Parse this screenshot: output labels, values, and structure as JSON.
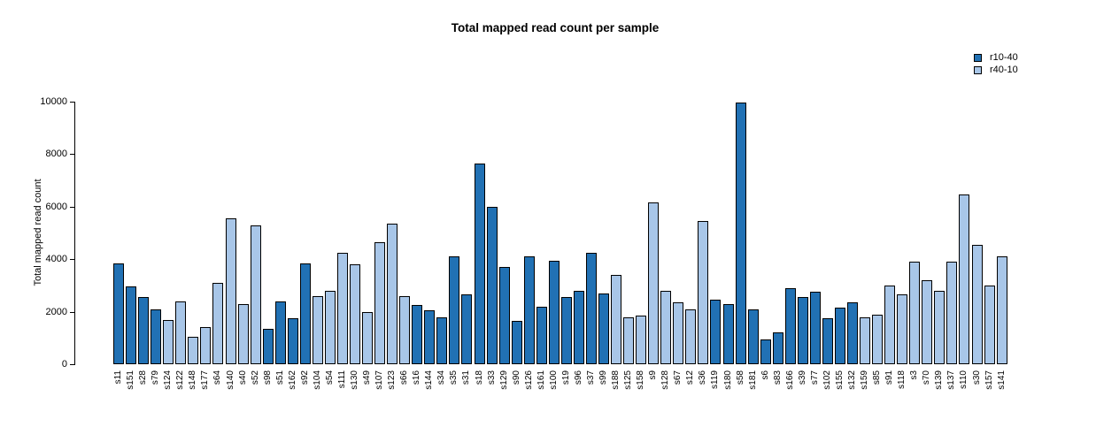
{
  "title": "Total mapped read count per sample",
  "y_axis": {
    "label": "Total mapped read count",
    "ticks": [
      0,
      2000,
      4000,
      6000,
      8000,
      10000
    ]
  },
  "legend": [
    {
      "label": "r10-40",
      "color": "#2171B4"
    },
    {
      "label": "r40-10",
      "color": "#A8C6E8"
    }
  ],
  "chart_data": {
    "type": "bar",
    "title": "Total mapped read count per sample",
    "xlabel": "",
    "ylabel": "Total mapped read count",
    "ylim": [
      0,
      10000
    ],
    "yticks": [
      0,
      2000,
      4000,
      6000,
      8000,
      10000
    ],
    "grid": false,
    "legend_position": "top-right",
    "series_colors": {
      "r10-40": "#2171B4",
      "r40-10": "#A8C6E8"
    },
    "bars": [
      {
        "label": "s11",
        "value": 3850,
        "series": "r10-40"
      },
      {
        "label": "s151",
        "value": 2950,
        "series": "r10-40"
      },
      {
        "label": "s28",
        "value": 2550,
        "series": "r10-40"
      },
      {
        "label": "s79",
        "value": 2100,
        "series": "r10-40"
      },
      {
        "label": "s124",
        "value": 1700,
        "series": "r40-10"
      },
      {
        "label": "s122",
        "value": 2400,
        "series": "r40-10"
      },
      {
        "label": "s148",
        "value": 1050,
        "series": "r40-10"
      },
      {
        "label": "s177",
        "value": 1400,
        "series": "r40-10"
      },
      {
        "label": "s64",
        "value": 3100,
        "series": "r40-10"
      },
      {
        "label": "s140",
        "value": 5550,
        "series": "r40-10"
      },
      {
        "label": "s40",
        "value": 2300,
        "series": "r40-10"
      },
      {
        "label": "s52",
        "value": 5300,
        "series": "r40-10"
      },
      {
        "label": "s98",
        "value": 1350,
        "series": "r10-40"
      },
      {
        "label": "s51",
        "value": 2400,
        "series": "r10-40"
      },
      {
        "label": "s162",
        "value": 1750,
        "series": "r10-40"
      },
      {
        "label": "s92",
        "value": 3850,
        "series": "r10-40"
      },
      {
        "label": "s104",
        "value": 2600,
        "series": "r40-10"
      },
      {
        "label": "s54",
        "value": 2800,
        "series": "r40-10"
      },
      {
        "label": "s111",
        "value": 4250,
        "series": "r40-10"
      },
      {
        "label": "s130",
        "value": 3800,
        "series": "r40-10"
      },
      {
        "label": "s49",
        "value": 2000,
        "series": "r40-10"
      },
      {
        "label": "s107",
        "value": 4650,
        "series": "r40-10"
      },
      {
        "label": "s123",
        "value": 5350,
        "series": "r40-10"
      },
      {
        "label": "s66",
        "value": 2600,
        "series": "r40-10"
      },
      {
        "label": "s16",
        "value": 2250,
        "series": "r10-40"
      },
      {
        "label": "s144",
        "value": 2050,
        "series": "r10-40"
      },
      {
        "label": "s34",
        "value": 1800,
        "series": "r10-40"
      },
      {
        "label": "s35",
        "value": 4100,
        "series": "r10-40"
      },
      {
        "label": "s31",
        "value": 2650,
        "series": "r10-40"
      },
      {
        "label": "s18",
        "value": 7650,
        "series": "r10-40"
      },
      {
        "label": "s33",
        "value": 6000,
        "series": "r10-40"
      },
      {
        "label": "s129",
        "value": 3700,
        "series": "r10-40"
      },
      {
        "label": "s90",
        "value": 1650,
        "series": "r10-40"
      },
      {
        "label": "s126",
        "value": 4100,
        "series": "r10-40"
      },
      {
        "label": "s161",
        "value": 2200,
        "series": "r10-40"
      },
      {
        "label": "s100",
        "value": 3950,
        "series": "r10-40"
      },
      {
        "label": "s19",
        "value": 2550,
        "series": "r10-40"
      },
      {
        "label": "s96",
        "value": 2800,
        "series": "r10-40"
      },
      {
        "label": "s37",
        "value": 4250,
        "series": "r10-40"
      },
      {
        "label": "s99",
        "value": 2700,
        "series": "r10-40"
      },
      {
        "label": "s188",
        "value": 3400,
        "series": "r40-10"
      },
      {
        "label": "s125",
        "value": 1800,
        "series": "r40-10"
      },
      {
        "label": "s158",
        "value": 1850,
        "series": "r40-10"
      },
      {
        "label": "s9",
        "value": 6150,
        "series": "r40-10"
      },
      {
        "label": "s128",
        "value": 2800,
        "series": "r40-10"
      },
      {
        "label": "s67",
        "value": 2350,
        "series": "r40-10"
      },
      {
        "label": "s12",
        "value": 2100,
        "series": "r40-10"
      },
      {
        "label": "s36",
        "value": 5450,
        "series": "r40-10"
      },
      {
        "label": "s119",
        "value": 2450,
        "series": "r10-40"
      },
      {
        "label": "s180",
        "value": 2300,
        "series": "r10-40"
      },
      {
        "label": "s58",
        "value": 9950,
        "series": "r10-40"
      },
      {
        "label": "s181",
        "value": 2100,
        "series": "r10-40"
      },
      {
        "label": "s6",
        "value": 950,
        "series": "r10-40"
      },
      {
        "label": "s83",
        "value": 1200,
        "series": "r10-40"
      },
      {
        "label": "s166",
        "value": 2900,
        "series": "r10-40"
      },
      {
        "label": "s39",
        "value": 2550,
        "series": "r10-40"
      },
      {
        "label": "s77",
        "value": 2750,
        "series": "r10-40"
      },
      {
        "label": "s102",
        "value": 1750,
        "series": "r10-40"
      },
      {
        "label": "s155",
        "value": 2150,
        "series": "r10-40"
      },
      {
        "label": "s132",
        "value": 2350,
        "series": "r10-40"
      },
      {
        "label": "s159",
        "value": 1800,
        "series": "r40-10"
      },
      {
        "label": "s85",
        "value": 1900,
        "series": "r40-10"
      },
      {
        "label": "s91",
        "value": 3000,
        "series": "r40-10"
      },
      {
        "label": "s118",
        "value": 2650,
        "series": "r40-10"
      },
      {
        "label": "s3",
        "value": 3900,
        "series": "r40-10"
      },
      {
        "label": "s70",
        "value": 3200,
        "series": "r40-10"
      },
      {
        "label": "s139",
        "value": 2800,
        "series": "r40-10"
      },
      {
        "label": "s137",
        "value": 3900,
        "series": "r40-10"
      },
      {
        "label": "s110",
        "value": 6450,
        "series": "r40-10"
      },
      {
        "label": "s30",
        "value": 4550,
        "series": "r40-10"
      },
      {
        "label": "s157",
        "value": 3000,
        "series": "r40-10"
      },
      {
        "label": "s141",
        "value": 4100,
        "series": "r40-10"
      }
    ]
  }
}
